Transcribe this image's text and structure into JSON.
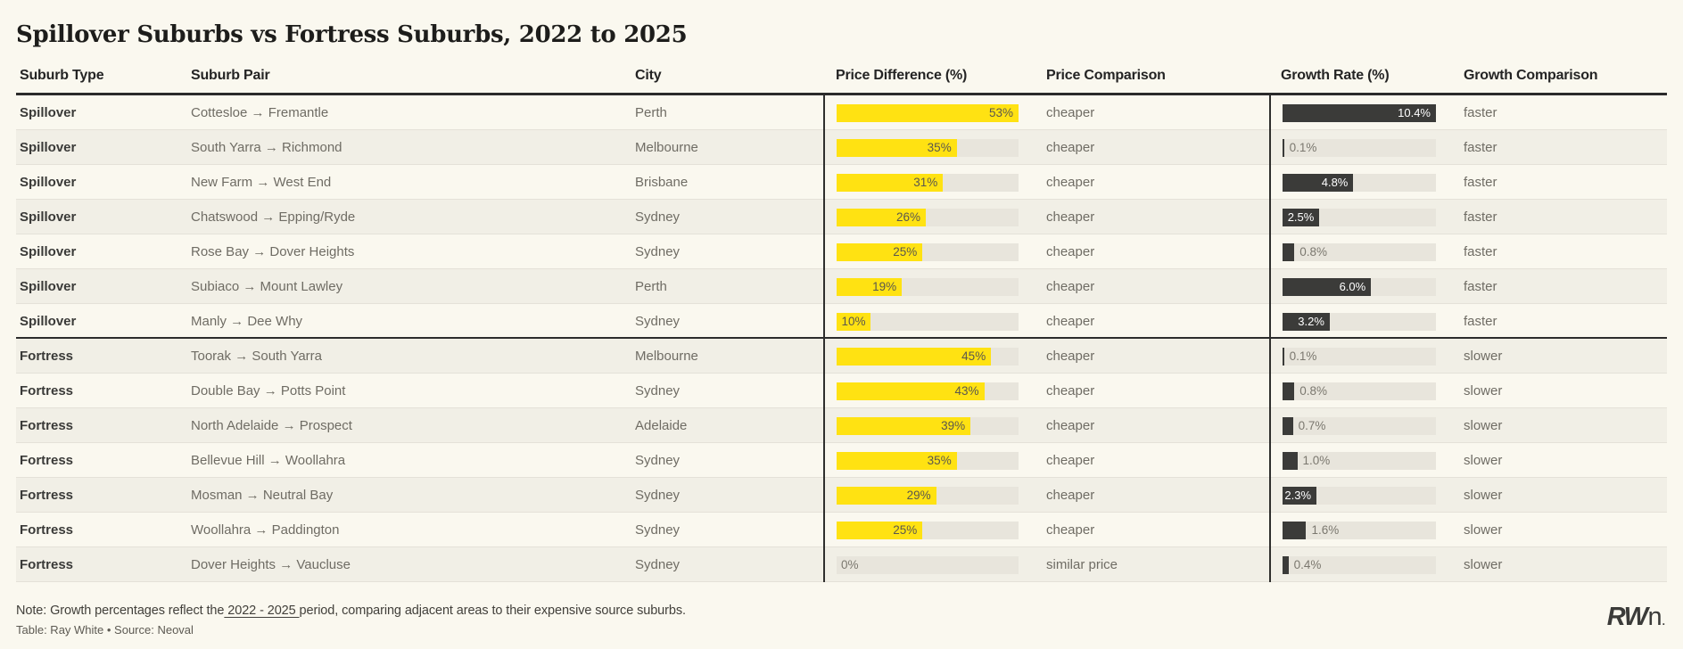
{
  "chart_data": {
    "type": "table",
    "title": "Spillover Suburbs vs Fortress Suburbs, 2022 to 2025",
    "columns": [
      "Suburb Type",
      "Suburb Pair",
      "City",
      "Price Difference (%)",
      "Price Comparison",
      "Growth Rate (%)",
      "Growth Comparison"
    ],
    "price_diff_axis": {
      "min": 0,
      "max": 53
    },
    "growth_axis": {
      "min": 0,
      "max": 10.4
    },
    "bar_colors": {
      "price_diff": "#FFE212",
      "growth_rate": "#3B3B39",
      "track": "#E8E5DC"
    },
    "rows": [
      {
        "suburb_type": "Spillover",
        "suburb_pair": "Cottesloe → Fremantle",
        "city": "Perth",
        "price_diff_pct": 53,
        "price_diff_label": "53%",
        "price_comparison": "cheaper",
        "growth_rate_pct": 10.4,
        "growth_rate_label": "10.4%",
        "growth_comparison": "faster"
      },
      {
        "suburb_type": "Spillover",
        "suburb_pair": "South Yarra → Richmond",
        "city": "Melbourne",
        "price_diff_pct": 35,
        "price_diff_label": "35%",
        "price_comparison": "cheaper",
        "growth_rate_pct": 0.1,
        "growth_rate_label": "0.1%",
        "growth_comparison": "faster"
      },
      {
        "suburb_type": "Spillover",
        "suburb_pair": "New Farm → West End",
        "city": "Brisbane",
        "price_diff_pct": 31,
        "price_diff_label": "31%",
        "price_comparison": "cheaper",
        "growth_rate_pct": 4.8,
        "growth_rate_label": "4.8%",
        "growth_comparison": "faster"
      },
      {
        "suburb_type": "Spillover",
        "suburb_pair": "Chatswood → Epping/Ryde",
        "city": "Sydney",
        "price_diff_pct": 26,
        "price_diff_label": "26%",
        "price_comparison": "cheaper",
        "growth_rate_pct": 2.5,
        "growth_rate_label": "2.5%",
        "growth_comparison": "faster"
      },
      {
        "suburb_type": "Spillover",
        "suburb_pair": "Rose Bay → Dover Heights",
        "city": "Sydney",
        "price_diff_pct": 25,
        "price_diff_label": "25%",
        "price_comparison": "cheaper",
        "growth_rate_pct": 0.8,
        "growth_rate_label": "0.8%",
        "growth_comparison": "faster"
      },
      {
        "suburb_type": "Spillover",
        "suburb_pair": "Subiaco → Mount Lawley",
        "city": "Perth",
        "price_diff_pct": 19,
        "price_diff_label": "19%",
        "price_comparison": "cheaper",
        "growth_rate_pct": 6.0,
        "growth_rate_label": "6.0%",
        "growth_comparison": "faster"
      },
      {
        "suburb_type": "Spillover",
        "suburb_pair": "Manly → Dee Why",
        "city": "Sydney",
        "price_diff_pct": 10,
        "price_diff_label": "10%",
        "price_comparison": "cheaper",
        "growth_rate_pct": 3.2,
        "growth_rate_label": "3.2%",
        "growth_comparison": "faster"
      },
      {
        "suburb_type": "Fortress",
        "suburb_pair": "Toorak → South Yarra",
        "city": "Melbourne",
        "price_diff_pct": 45,
        "price_diff_label": "45%",
        "price_comparison": "cheaper",
        "growth_rate_pct": 0.1,
        "growth_rate_label": "0.1%",
        "growth_comparison": "slower"
      },
      {
        "suburb_type": "Fortress",
        "suburb_pair": "Double Bay → Potts Point",
        "city": "Sydney",
        "price_diff_pct": 43,
        "price_diff_label": "43%",
        "price_comparison": "cheaper",
        "growth_rate_pct": 0.8,
        "growth_rate_label": "0.8%",
        "growth_comparison": "slower"
      },
      {
        "suburb_type": "Fortress",
        "suburb_pair": "North Adelaide → Prospect",
        "city": "Adelaide",
        "price_diff_pct": 39,
        "price_diff_label": "39%",
        "price_comparison": "cheaper",
        "growth_rate_pct": 0.7,
        "growth_rate_label": "0.7%",
        "growth_comparison": "slower"
      },
      {
        "suburb_type": "Fortress",
        "suburb_pair": "Bellevue Hill → Woollahra",
        "city": "Sydney",
        "price_diff_pct": 35,
        "price_diff_label": "35%",
        "price_comparison": "cheaper",
        "growth_rate_pct": 1.0,
        "growth_rate_label": "1.0%",
        "growth_comparison": "slower"
      },
      {
        "suburb_type": "Fortress",
        "suburb_pair": "Mosman → Neutral Bay",
        "city": "Sydney",
        "price_diff_pct": 29,
        "price_diff_label": "29%",
        "price_comparison": "cheaper",
        "growth_rate_pct": 2.3,
        "growth_rate_label": "2.3%",
        "growth_comparison": "slower"
      },
      {
        "suburb_type": "Fortress",
        "suburb_pair": "Woollahra → Paddington",
        "city": "Sydney",
        "price_diff_pct": 25,
        "price_diff_label": "25%",
        "price_comparison": "cheaper",
        "growth_rate_pct": 1.6,
        "growth_rate_label": "1.6%",
        "growth_comparison": "slower"
      },
      {
        "suburb_type": "Fortress",
        "suburb_pair": "Dover Heights → Vaucluse",
        "city": "Sydney",
        "price_diff_pct": 0,
        "price_diff_label": "0%",
        "price_comparison": "similar price",
        "growth_rate_pct": 0.4,
        "growth_rate_label": "0.4%",
        "growth_comparison": "slower"
      }
    ]
  },
  "note": {
    "prefix": "Note: Growth percentages reflect the",
    "underlined": " 2022 - 2025 ",
    "suffix": "period, comparing adjacent areas to their expensive source suburbs."
  },
  "credit": "Table: Ray White • Source: Neoval",
  "logo": {
    "rw": "RW",
    "n": "n",
    "dot": "."
  },
  "colors": {
    "background": "#FAF8EF",
    "alt_row": "#F1EFE6",
    "yellow": "#FFE212",
    "dark_bar": "#3B3B39",
    "track": "#E8E5DC"
  }
}
